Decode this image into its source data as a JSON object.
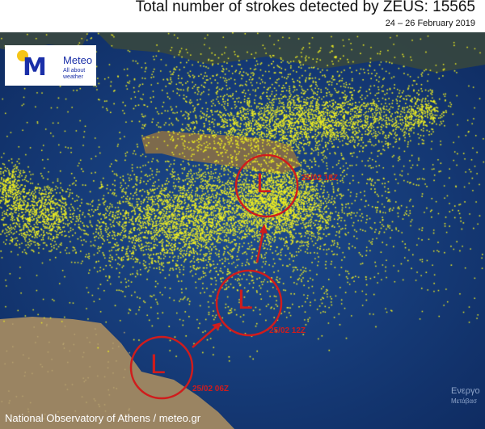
{
  "header": {
    "title": "Total number of strokes detected by ZEUS: 15565",
    "subtitle": "24 – 26 February 2019"
  },
  "logo": {
    "name": "Meteo",
    "tagline": "All about weather",
    "colors": {
      "blue": "#1a2fa8",
      "sun": "#f5c518"
    }
  },
  "lows": [
    {
      "symbol": "L",
      "time": "25/02 06Z"
    },
    {
      "symbol": "L",
      "time": "25/02 12Z"
    },
    {
      "symbol": "L",
      "time": "25/02 18Z"
    }
  ],
  "footer": "National Observatory of Athens / meteo.gr",
  "watermark": {
    "line1": "Ενεργο",
    "line2": "Μετάβασ"
  },
  "colors": {
    "sea": "#163a78",
    "land": "#8a7352",
    "strokes": "#f0f020",
    "low_marker": "#d01c1c"
  }
}
